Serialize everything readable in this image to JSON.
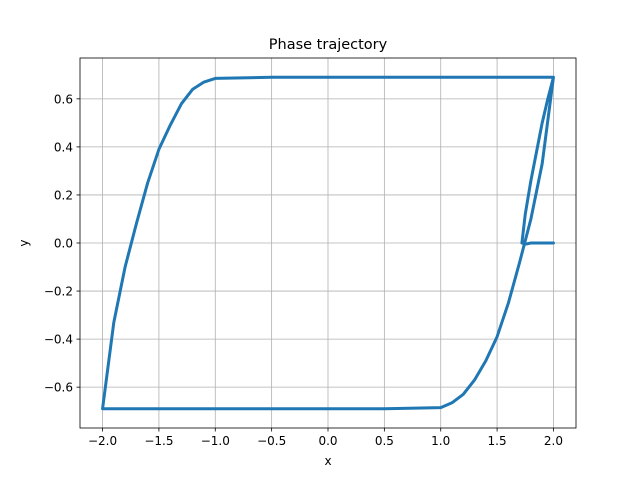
{
  "chart_data": {
    "type": "line",
    "title": "Phase trajectory",
    "xlabel": "x",
    "ylabel": "y",
    "xlim": [
      -2.2,
      2.2
    ],
    "ylim": [
      -0.77,
      0.77
    ],
    "xticks": [
      -2.0,
      -1.5,
      -1.0,
      -0.5,
      0.0,
      0.5,
      1.0,
      1.5,
      2.0
    ],
    "xtick_labels": [
      "−2.0",
      "−1.5",
      "−1.0",
      "−0.5",
      "0.0",
      "0.5",
      "1.0",
      "1.5",
      "2.0"
    ],
    "yticks": [
      -0.6,
      -0.4,
      -0.2,
      0.0,
      0.2,
      0.4,
      0.6
    ],
    "ytick_labels": [
      "−0.6",
      "−0.4",
      "−0.2",
      "0.0",
      "0.2",
      "0.4",
      "0.6"
    ],
    "grid": true,
    "color": "#1f77b4",
    "series": [
      {
        "x": [
          2.0,
          1.95,
          1.9,
          1.85,
          1.8,
          1.75,
          1.72,
          1.75,
          1.8,
          1.85,
          1.9,
          1.95,
          2.0,
          1.8,
          1.5,
          1.2,
          1.0,
          0.5,
          0.0,
          -0.5,
          -1.0,
          -1.1,
          -1.2,
          -1.3,
          -1.4,
          -1.5,
          -1.6,
          -1.7,
          -1.8,
          -1.9,
          -2.0,
          -1.8,
          -1.5,
          -1.0,
          -0.5,
          0.0,
          0.5,
          1.0,
          1.1,
          1.2,
          1.3,
          1.4,
          1.5,
          1.6,
          1.7,
          1.8,
          1.9,
          2.0
        ],
        "y": [
          0.0,
          0.0,
          0.0,
          0.0,
          0.0,
          -0.005,
          0.0,
          0.12,
          0.26,
          0.38,
          0.5,
          0.6,
          0.69,
          0.69,
          0.69,
          0.69,
          0.69,
          0.69,
          0.69,
          0.69,
          0.685,
          0.67,
          0.64,
          0.58,
          0.49,
          0.39,
          0.25,
          0.08,
          -0.1,
          -0.33,
          -0.69,
          -0.69,
          -0.69,
          -0.69,
          -0.69,
          -0.69,
          -0.69,
          -0.685,
          -0.665,
          -0.63,
          -0.57,
          -0.49,
          -0.39,
          -0.25,
          -0.08,
          0.1,
          0.33,
          0.69
        ]
      }
    ]
  }
}
